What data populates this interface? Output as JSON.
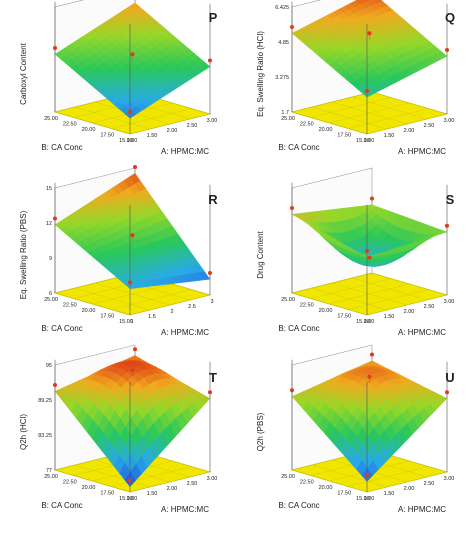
{
  "colors": {
    "floor": "#f0e600",
    "floor_edge": "#c9bf00",
    "frame": "#555555",
    "point": "#e23a1a"
  },
  "chart_data": [
    {
      "type": "surface3d",
      "panel": "P",
      "title": "",
      "zlabel": "Carboxyl Content",
      "xlabel": "A: HPMC:MC",
      "ylabel": "B: CA Conc",
      "x_ticks": [
        "1.00",
        "1.50",
        "2.00",
        "2.50",
        "3.00"
      ],
      "y_ticks": [
        "15.00",
        "17.50",
        "20.00",
        "22.50",
        "25.00"
      ],
      "z_ticks": [
        "",
        "",
        "",
        "",
        ""
      ],
      "x_range": [
        1,
        3
      ],
      "y_range": [
        15,
        25
      ],
      "corner_values": {
        "x1_y15": 0.15,
        "x3_y15": 0.45,
        "x1_y25": 0.55,
        "x3_y25": 0.85
      },
      "curvature": 0.0
    },
    {
      "type": "surface3d",
      "panel": "Q",
      "title": "",
      "zlabel": "Eq. Swelling Ratio (HCl)",
      "xlabel": "A: HPMC:MC",
      "ylabel": "B: CA Conc",
      "x_ticks": [
        "1.00",
        "1.50",
        "2.00",
        "2.50",
        "3.00"
      ],
      "y_ticks": [
        "15.00",
        "17.50",
        "20.00",
        "22.50",
        "25.00"
      ],
      "z_ticks": [
        "1.7",
        "3.275",
        "4.85",
        "6.425"
      ],
      "x_range": [
        1,
        3
      ],
      "y_range": [
        15,
        25
      ],
      "corner_values": {
        "x1_y15": 0.35,
        "x3_y15": 0.55,
        "x1_y25": 0.75,
        "x3_y25": 0.95
      },
      "curvature": 0.1
    },
    {
      "type": "surface3d",
      "panel": "R",
      "title": "",
      "zlabel": "Eq. Swelling Ratio (PBS)",
      "xlabel": "A: HPMC:MC",
      "ylabel": "B: CA Conc",
      "x_ticks": [
        "1",
        "1.5",
        "2",
        "2.5",
        "3"
      ],
      "y_ticks": [
        "15.00",
        "17.50",
        "20.00",
        "22.50",
        "25.00"
      ],
      "z_ticks": [
        "6",
        "9",
        "12",
        "15"
      ],
      "x_range": [
        1,
        3
      ],
      "y_range": [
        15,
        25
      ],
      "corner_values": {
        "x1_y15": 0.25,
        "x3_y15": 0.15,
        "x1_y25": 0.65,
        "x3_y25": 0.95
      },
      "curvature": 0.0
    },
    {
      "type": "surface3d",
      "panel": "S",
      "title": "",
      "zlabel": "Drug Content",
      "xlabel": "A: HPMC:MC",
      "ylabel": "B: CA Conc",
      "x_ticks": [
        "1.00",
        "1.50",
        "2.00",
        "2.50",
        "3.00"
      ],
      "y_ticks": [
        "15.00",
        "17.50",
        "20.00",
        "22.50",
        "25.00"
      ],
      "z_ticks": [
        "",
        "",
        "",
        ""
      ],
      "x_range": [
        1,
        3
      ],
      "y_range": [
        15,
        25
      ],
      "corner_values": {
        "x1_y15": 0.55,
        "x3_y15": 0.6,
        "x1_y25": 0.75,
        "x3_y25": 0.65
      },
      "curvature": -0.7
    },
    {
      "type": "surface3d",
      "panel": "T",
      "title": "",
      "zlabel": "Q2h (HCl)",
      "xlabel": "A: HPMC:MC",
      "ylabel": "B: CA Conc",
      "x_ticks": [
        "1.00",
        "1.50",
        "2.00",
        "2.50",
        "3.00"
      ],
      "y_ticks": [
        "15.00",
        "17.50",
        "20.00",
        "22.50",
        "25.00"
      ],
      "z_ticks": [
        "77",
        "83.25",
        "89.25",
        "95"
      ],
      "x_range": [
        1,
        3
      ],
      "y_range": [
        15,
        25
      ],
      "corner_values": {
        "x1_y15": 0.05,
        "x3_y15": 0.7,
        "x1_y25": 0.75,
        "x3_y25": 0.9
      },
      "curvature": 0.6
    },
    {
      "type": "surface3d",
      "panel": "U",
      "title": "",
      "zlabel": "Q2h (PBS)",
      "xlabel": "A: HPMC:MC",
      "ylabel": "B: CA Conc",
      "x_ticks": [
        "1.00",
        "1.50",
        "2.00",
        "2.50",
        "3.00"
      ],
      "y_ticks": [
        "15.00",
        "17.50",
        "20.00",
        "22.50",
        "25.00"
      ],
      "z_ticks": [
        "",
        "",
        "",
        ""
      ],
      "x_range": [
        1,
        3
      ],
      "y_range": [
        15,
        25
      ],
      "corner_values": {
        "x1_y15": 0.1,
        "x3_y15": 0.7,
        "x1_y25": 0.7,
        "x3_y25": 0.85
      },
      "curvature": 0.5
    }
  ]
}
